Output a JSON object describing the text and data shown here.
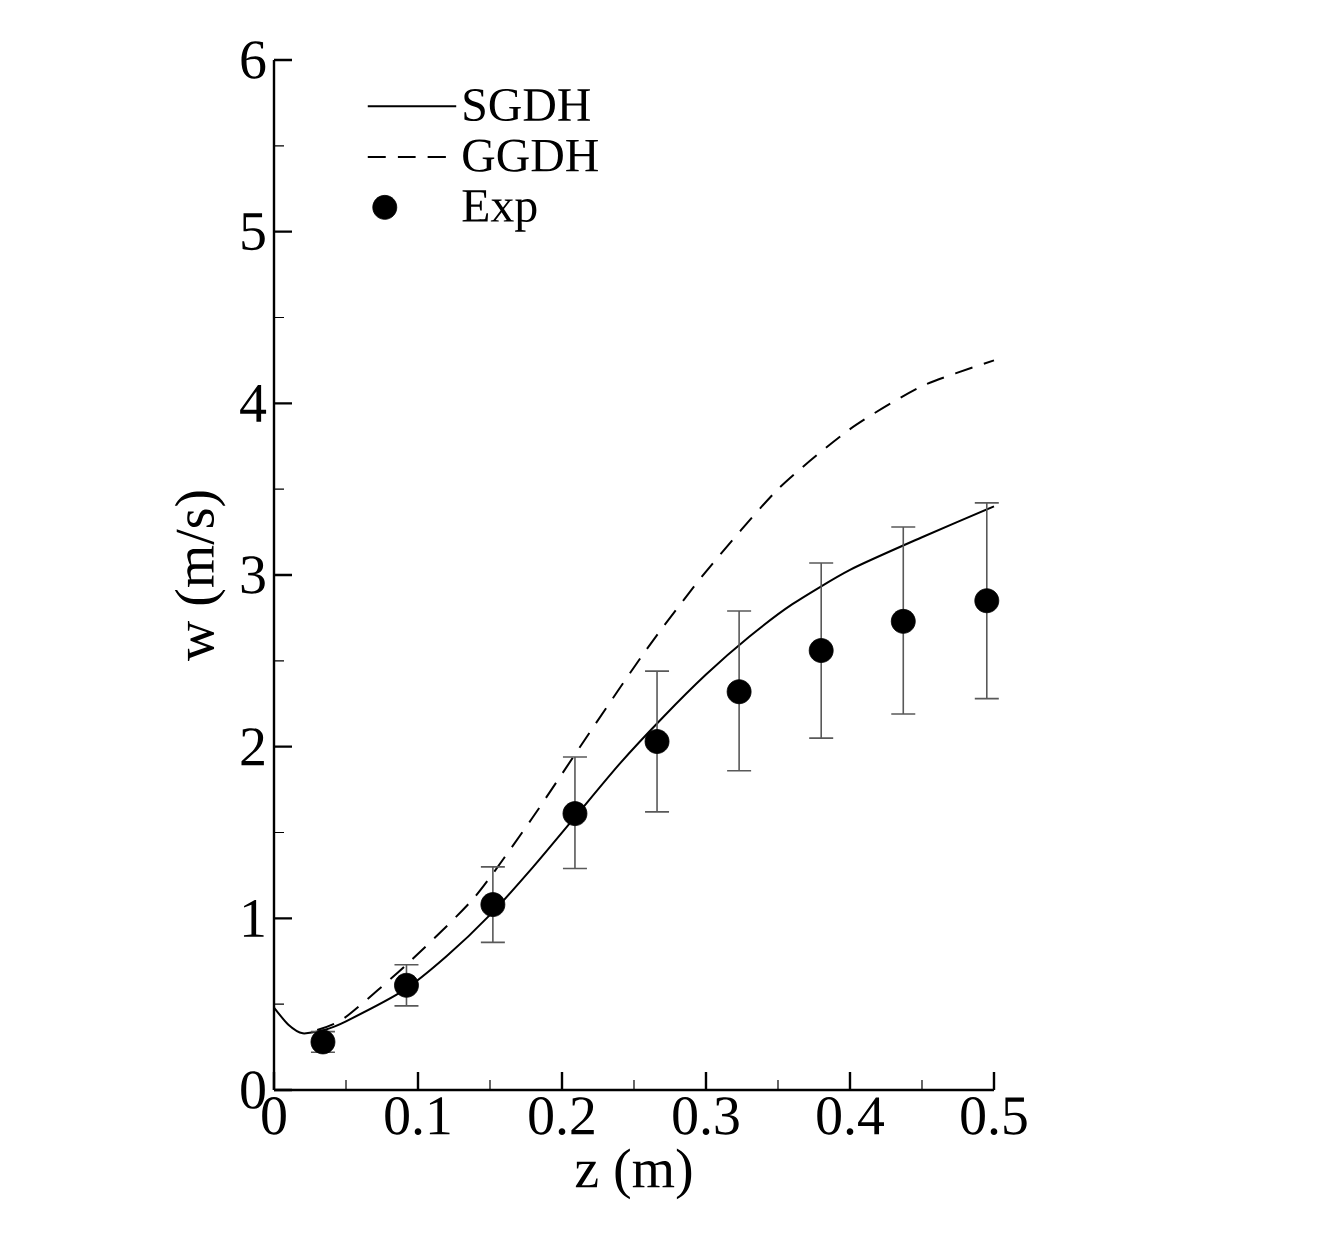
{
  "chart_data": {
    "type": "line",
    "xlabel": "z (m)",
    "ylabel": "w (m/s)",
    "xlim": [
      0,
      0.5
    ],
    "ylim": [
      0,
      6
    ],
    "xticks": [
      0,
      0.1,
      0.2,
      0.3,
      0.4,
      0.5
    ],
    "yticks": [
      0,
      1,
      2,
      3,
      4,
      5,
      6
    ],
    "legend": "top left",
    "grid": false,
    "marker": "none",
    "series": [
      {
        "name": "SGDH",
        "color": "#000000",
        "line_style": "solid",
        "x": [
          0,
          0.01,
          0.02,
          0.035,
          0.05,
          0.09,
          0.12,
          0.15,
          0.18,
          0.21,
          0.24,
          0.27,
          0.3,
          0.33,
          0.36,
          0.4,
          0.45,
          0.5
        ],
        "values": [
          0.48,
          0.38,
          0.33,
          0.35,
          0.4,
          0.58,
          0.78,
          1.02,
          1.3,
          1.6,
          1.9,
          2.17,
          2.42,
          2.64,
          2.83,
          3.03,
          3.22,
          3.4
        ]
      },
      {
        "name": "GGDH",
        "color": "#000000",
        "line_style": "dashed",
        "x": [
          0.03,
          0.049,
          0.092,
          0.139,
          0.179,
          0.219,
          0.259,
          0.3,
          0.35,
          0.4,
          0.45,
          0.5
        ],
        "values": [
          0.35,
          0.42,
          0.73,
          1.12,
          1.58,
          2.08,
          2.57,
          3.02,
          3.5,
          3.85,
          4.1,
          4.25
        ]
      },
      {
        "name": "Exp",
        "type": "scatter",
        "color": "#000000",
        "marker": "circle",
        "x": [
          0.034,
          0.092,
          0.152,
          0.209,
          0.266,
          0.323,
          0.38,
          0.437,
          0.495
        ],
        "values": [
          0.28,
          0.61,
          1.08,
          1.61,
          2.03,
          2.32,
          2.56,
          2.73,
          2.85
        ],
        "errors": [
          [
            0.22,
            0.34
          ],
          [
            0.49,
            0.73
          ],
          [
            0.86,
            1.3
          ],
          [
            1.29,
            1.94
          ],
          [
            1.62,
            2.44
          ],
          [
            1.86,
            2.79
          ],
          [
            2.05,
            3.07
          ],
          [
            2.19,
            3.28
          ],
          [
            2.28,
            3.42
          ]
        ]
      }
    ]
  }
}
